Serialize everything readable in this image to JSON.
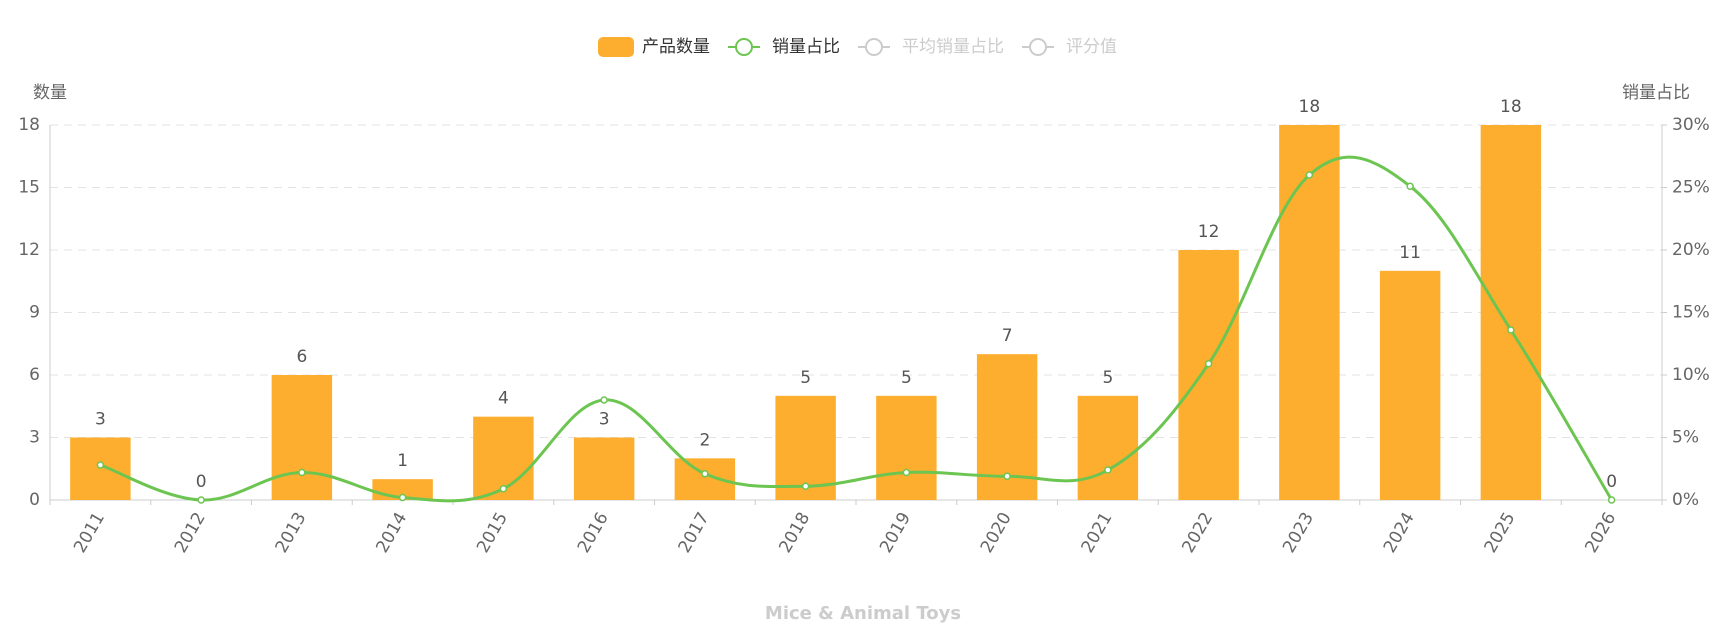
{
  "chart_data": {
    "type": "bar",
    "title": "Mice & Animal Toys",
    "y_label": "数量",
    "y2_label": "销量占比",
    "categories": [
      "2011",
      "2012",
      "2013",
      "2014",
      "2015",
      "2016",
      "2017",
      "2018",
      "2019",
      "2020",
      "2021",
      "2022",
      "2023",
      "2024",
      "2025",
      "2026"
    ],
    "series": [
      {
        "name": "产品数量",
        "type": "bar",
        "color": "#fdae2e",
        "values": [
          3,
          0,
          6,
          1,
          4,
          3,
          2,
          5,
          5,
          7,
          5,
          12,
          18,
          11,
          18,
          0
        ]
      },
      {
        "name": "销量占比",
        "type": "line",
        "axis": "y2",
        "color": "#6cc551",
        "smooth": true,
        "values": [
          2.8,
          0,
          2.2,
          0.2,
          0.9,
          8.0,
          2.1,
          1.1,
          2.2,
          1.9,
          2.4,
          10.9,
          26.0,
          25.1,
          13.6,
          0
        ]
      }
    ],
    "inactive_legend": [
      "平均销量占比",
      "评分值"
    ],
    "ylim": [
      0,
      18
    ],
    "yticks": [
      0,
      3,
      6,
      9,
      12,
      15,
      18
    ],
    "y2lim": [
      0,
      30
    ],
    "y2ticks": [
      {
        "value": 0,
        "label": "0%"
      },
      {
        "value": 5,
        "label": "5%"
      },
      {
        "value": 10,
        "label": "10%"
      },
      {
        "value": 15,
        "label": "15%"
      },
      {
        "value": 20,
        "label": "20%"
      },
      {
        "value": 25,
        "label": "25%"
      },
      {
        "value": 30,
        "label": "30%"
      }
    ],
    "grid": true,
    "legend": "top"
  }
}
